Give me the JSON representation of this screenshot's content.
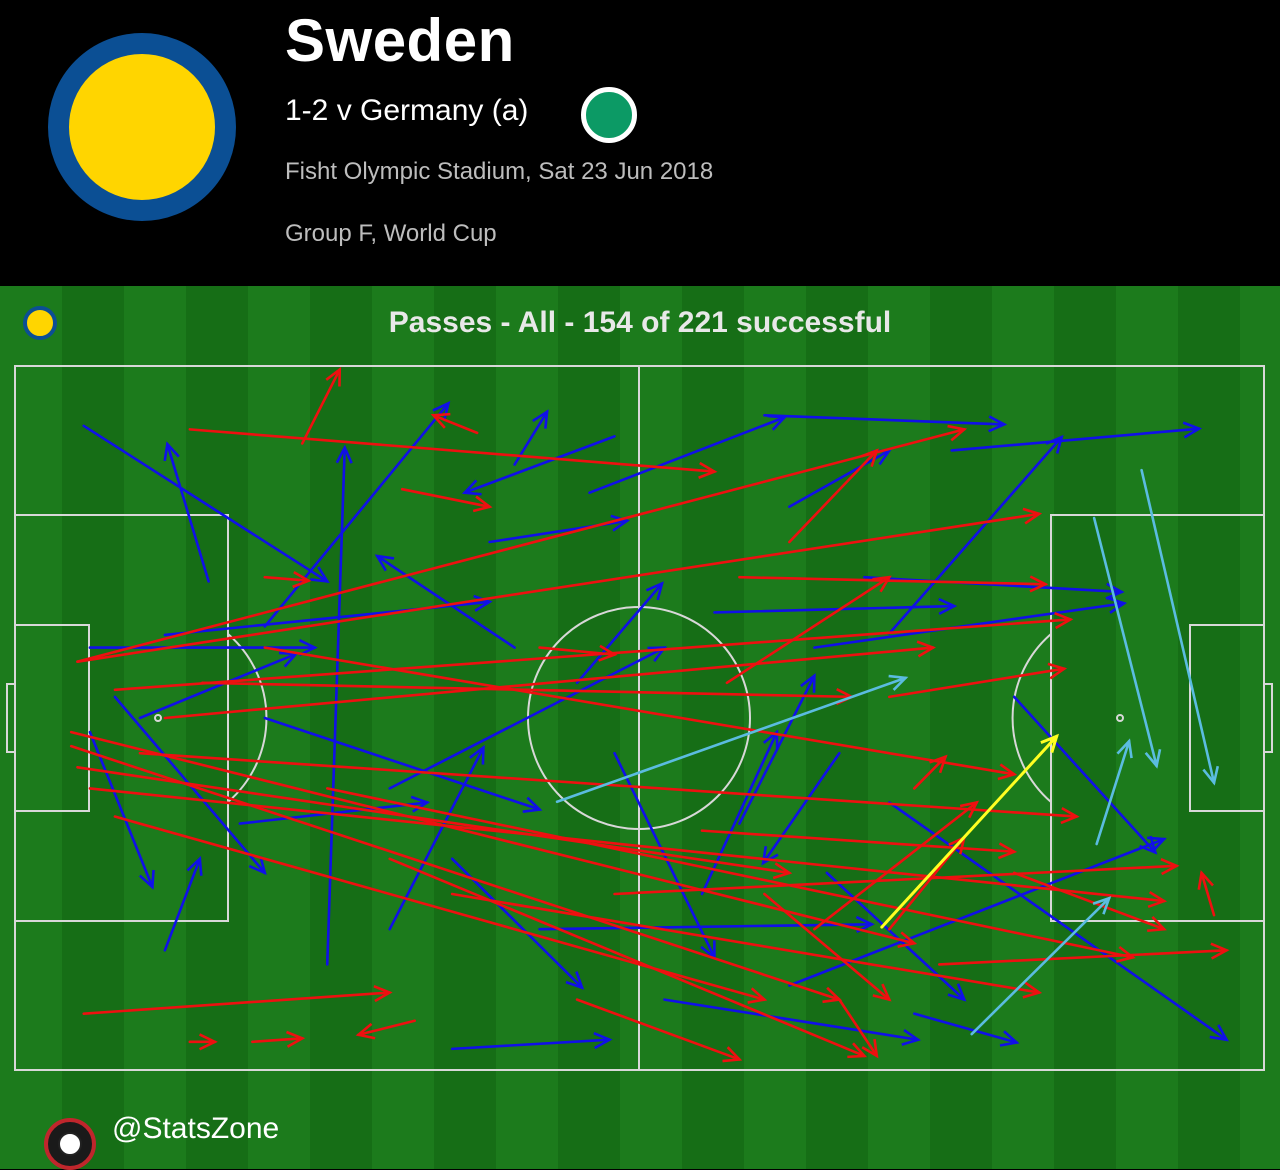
{
  "header": {
    "team_name": "Sweden",
    "score_line": "1-2 v Germany (a)",
    "venue": "Fisht Olympic Stadium, Sat 23 Jun 2018",
    "competition": "Group F, World Cup"
  },
  "colors": {
    "team_primary": "#ffd500",
    "team_secondary": "#0b4f94",
    "opponent_badge": "#0c9a65",
    "successful_pass": "#1010e8",
    "unsuccessful_pass": "#ee1010",
    "key_pass": "#5bbce0",
    "assist": "#ffff22"
  },
  "chart": {
    "title": "Passes - All - 154 of 221 successful"
  },
  "footer": {
    "handle": "@StatsZone"
  },
  "chart_data": {
    "type": "pass_map",
    "title": "Passes - All - 154 of 221 successful",
    "successful": 154,
    "total": 221,
    "coordinates": "percent of pitch length (x, attacking left-to-right) and width (y, from top touchline)",
    "key_passes": [
      {
        "from": [
          90.2,
          14.8
        ],
        "to": [
          96.0,
          59.2
        ]
      },
      {
        "from": [
          86.4,
          21.6
        ],
        "to": [
          91.4,
          56.8
        ]
      },
      {
        "from": [
          86.6,
          67.9
        ],
        "to": [
          89.2,
          53.3
        ]
      },
      {
        "from": [
          76.6,
          94.9
        ],
        "to": [
          87.6,
          75.6
        ]
      },
      {
        "from": [
          43.4,
          61.9
        ],
        "to": [
          71.3,
          44.3
        ]
      }
    ],
    "assists": [
      {
        "from": [
          69.4,
          79.7
        ],
        "to": [
          83.4,
          52.6
        ]
      }
    ],
    "successful_passes": [
      {
        "from": [
          5.5,
          8.5
        ],
        "to": [
          25.0,
          30.6
        ]
      },
      {
        "from": [
          15.5,
          30.6
        ],
        "to": [
          12.2,
          11.1
        ]
      },
      {
        "from": [
          12.0,
          38.2
        ],
        "to": [
          38.0,
          33.5
        ]
      },
      {
        "from": [
          20.0,
          37.0
        ],
        "to": [
          34.7,
          5.3
        ]
      },
      {
        "from": [
          30.0,
          80.0
        ],
        "to": [
          37.5,
          54.2
        ]
      },
      {
        "from": [
          25.0,
          85.0
        ],
        "to": [
          26.4,
          11.6
        ]
      },
      {
        "from": [
          35.0,
          97.0
        ],
        "to": [
          47.6,
          95.7
        ]
      },
      {
        "from": [
          40.0,
          14.0
        ],
        "to": [
          42.6,
          6.5
        ]
      },
      {
        "from": [
          46.0,
          18.0
        ],
        "to": [
          61.6,
          7.3
        ]
      },
      {
        "from": [
          60.0,
          7.0
        ],
        "to": [
          79.2,
          8.3
        ]
      },
      {
        "from": [
          56.0,
          35.0
        ],
        "to": [
          75.2,
          34.1
        ]
      },
      {
        "from": [
          64.0,
          40.0
        ],
        "to": [
          88.8,
          33.7
        ]
      },
      {
        "from": [
          70.0,
          38.0
        ],
        "to": [
          83.8,
          10.1
        ]
      },
      {
        "from": [
          75.0,
          12.0
        ],
        "to": [
          94.8,
          8.9
        ]
      },
      {
        "from": [
          80.0,
          47.0
        ],
        "to": [
          91.3,
          69.1
        ]
      },
      {
        "from": [
          66.0,
          55.0
        ],
        "to": [
          59.9,
          70.6
        ]
      },
      {
        "from": [
          48.0,
          55.0
        ],
        "to": [
          56.0,
          84.0
        ]
      },
      {
        "from": [
          10.0,
          50.0
        ],
        "to": [
          22.5,
          40.9
        ]
      },
      {
        "from": [
          6.0,
          52.0
        ],
        "to": [
          11.0,
          74.0
        ]
      },
      {
        "from": [
          8.0,
          47.0
        ],
        "to": [
          20.0,
          72.0
        ]
      },
      {
        "from": [
          12.0,
          83.0
        ],
        "to": [
          14.8,
          70.0
        ]
      },
      {
        "from": [
          20.0,
          50.0
        ],
        "to": [
          42.0,
          63.0
        ]
      },
      {
        "from": [
          30.0,
          60.0
        ],
        "to": [
          52.0,
          40.0
        ]
      },
      {
        "from": [
          42.0,
          80.0
        ],
        "to": [
          68.6,
          79.3
        ]
      },
      {
        "from": [
          52.0,
          90.0
        ],
        "to": [
          72.3,
          95.7
        ]
      },
      {
        "from": [
          62.0,
          88.0
        ],
        "to": [
          92.0,
          67.2
        ]
      },
      {
        "from": [
          70.0,
          62.0
        ],
        "to": [
          97.0,
          95.7
        ]
      },
      {
        "from": [
          72.0,
          92.0
        ],
        "to": [
          80.2,
          96.1
        ]
      },
      {
        "from": [
          55.0,
          75.0
        ],
        "to": [
          61.0,
          52.0
        ]
      },
      {
        "from": [
          45.0,
          45.0
        ],
        "to": [
          51.8,
          30.9
        ]
      },
      {
        "from": [
          35.0,
          70.0
        ],
        "to": [
          45.4,
          88.3
        ]
      },
      {
        "from": [
          38.0,
          25.0
        ],
        "to": [
          49.0,
          22.0
        ]
      },
      {
        "from": [
          6.0,
          40.0
        ],
        "to": [
          24.0,
          40.0
        ]
      },
      {
        "from": [
          18.0,
          65.0
        ],
        "to": [
          33.0,
          62.0
        ]
      },
      {
        "from": [
          68.0,
          30.0
        ],
        "to": [
          88.6,
          32.1
        ]
      },
      {
        "from": [
          58.0,
          65.0
        ],
        "to": [
          64.0,
          44.0
        ]
      },
      {
        "from": [
          62.0,
          20.0
        ],
        "to": [
          70.0,
          12.0
        ]
      },
      {
        "from": [
          40.0,
          40.0
        ],
        "to": [
          29.0,
          27.0
        ]
      },
      {
        "from": [
          48.0,
          10.0
        ],
        "to": [
          36.0,
          18.0
        ]
      },
      {
        "from": [
          65.0,
          72.0
        ],
        "to": [
          76.0,
          90.0
        ]
      }
    ],
    "unsuccessful_passes": [
      {
        "from": [
          5.0,
          42.0
        ],
        "to": [
          82.0,
          21.0
        ]
      },
      {
        "from": [
          5.0,
          42.0
        ],
        "to": [
          76.0,
          9.0
        ]
      },
      {
        "from": [
          14.0,
          9.0
        ],
        "to": [
          56.0,
          15.0
        ]
      },
      {
        "from": [
          23.0,
          11.0
        ],
        "to": [
          26.0,
          0.5
        ]
      },
      {
        "from": [
          31.0,
          17.5
        ],
        "to": [
          38.0,
          20.0
        ]
      },
      {
        "from": [
          37.0,
          9.5
        ],
        "to": [
          33.5,
          7.0
        ]
      },
      {
        "from": [
          4.5,
          52.0
        ],
        "to": [
          72.0,
          82.0
        ]
      },
      {
        "from": [
          4.5,
          54.0
        ],
        "to": [
          66.0,
          90.0
        ]
      },
      {
        "from": [
          5.0,
          57.0
        ],
        "to": [
          62.0,
          72.0
        ]
      },
      {
        "from": [
          6.0,
          60.0
        ],
        "to": [
          92.0,
          76.0
        ]
      },
      {
        "from": [
          8.0,
          64.0
        ],
        "to": [
          60.0,
          90.0
        ]
      },
      {
        "from": [
          10.0,
          55.0
        ],
        "to": [
          85.0,
          64.0
        ]
      },
      {
        "from": [
          12.0,
          50.0
        ],
        "to": [
          73.5,
          40.0
        ]
      },
      {
        "from": [
          15.0,
          45.0
        ],
        "to": [
          67.0,
          47.0
        ]
      },
      {
        "from": [
          8.0,
          46.0
        ],
        "to": [
          84.5,
          36.0
        ]
      },
      {
        "from": [
          20.0,
          40.0
        ],
        "to": [
          80.0,
          58.0
        ]
      },
      {
        "from": [
          25.0,
          60.0
        ],
        "to": [
          89.5,
          84.0
        ]
      },
      {
        "from": [
          30.0,
          70.0
        ],
        "to": [
          68.0,
          98.0
        ]
      },
      {
        "from": [
          35.0,
          75.0
        ],
        "to": [
          82.0,
          89.0
        ]
      },
      {
        "from": [
          5.5,
          92.0
        ],
        "to": [
          30.0,
          89.0
        ]
      },
      {
        "from": [
          14.0,
          96.0
        ],
        "to": [
          16.0,
          96.0
        ]
      },
      {
        "from": [
          19.0,
          96.0
        ],
        "to": [
          23.0,
          95.5
        ]
      },
      {
        "from": [
          32.0,
          93.0
        ],
        "to": [
          27.5,
          95.0
        ]
      },
      {
        "from": [
          45.0,
          90.0
        ],
        "to": [
          58.0,
          98.5
        ]
      },
      {
        "from": [
          48.0,
          75.0
        ],
        "to": [
          93.0,
          71.0
        ]
      },
      {
        "from": [
          55.0,
          66.0
        ],
        "to": [
          80.0,
          69.0
        ]
      },
      {
        "from": [
          64.0,
          80.0
        ],
        "to": [
          77.0,
          62.0
        ]
      },
      {
        "from": [
          70.0,
          80.0
        ],
        "to": [
          76.0,
          67.0
        ]
      },
      {
        "from": [
          72.0,
          60.0
        ],
        "to": [
          74.5,
          55.5
        ]
      },
      {
        "from": [
          74.0,
          85.0
        ],
        "to": [
          97.0,
          83.0
        ]
      },
      {
        "from": [
          96.0,
          78.0
        ],
        "to": [
          95.0,
          72.0
        ]
      },
      {
        "from": [
          80.0,
          72.0
        ],
        "to": [
          92.0,
          80.0
        ]
      },
      {
        "from": [
          42.0,
          40.0
        ],
        "to": [
          48.0,
          41.0
        ]
      },
      {
        "from": [
          57.0,
          45.0
        ],
        "to": [
          70.0,
          30.0
        ]
      },
      {
        "from": [
          58.0,
          30.0
        ],
        "to": [
          82.5,
          31.0
        ]
      },
      {
        "from": [
          62.0,
          25.0
        ],
        "to": [
          69.0,
          12.0
        ]
      },
      {
        "from": [
          70.0,
          47.0
        ],
        "to": [
          84.0,
          43.0
        ]
      },
      {
        "from": [
          60.0,
          75.0
        ],
        "to": [
          70.0,
          90.0
        ]
      },
      {
        "from": [
          20.0,
          30.0
        ],
        "to": [
          23.5,
          30.5
        ]
      },
      {
        "from": [
          66.0,
          90.0
        ],
        "to": [
          69.0,
          98.0
        ]
      }
    ]
  }
}
